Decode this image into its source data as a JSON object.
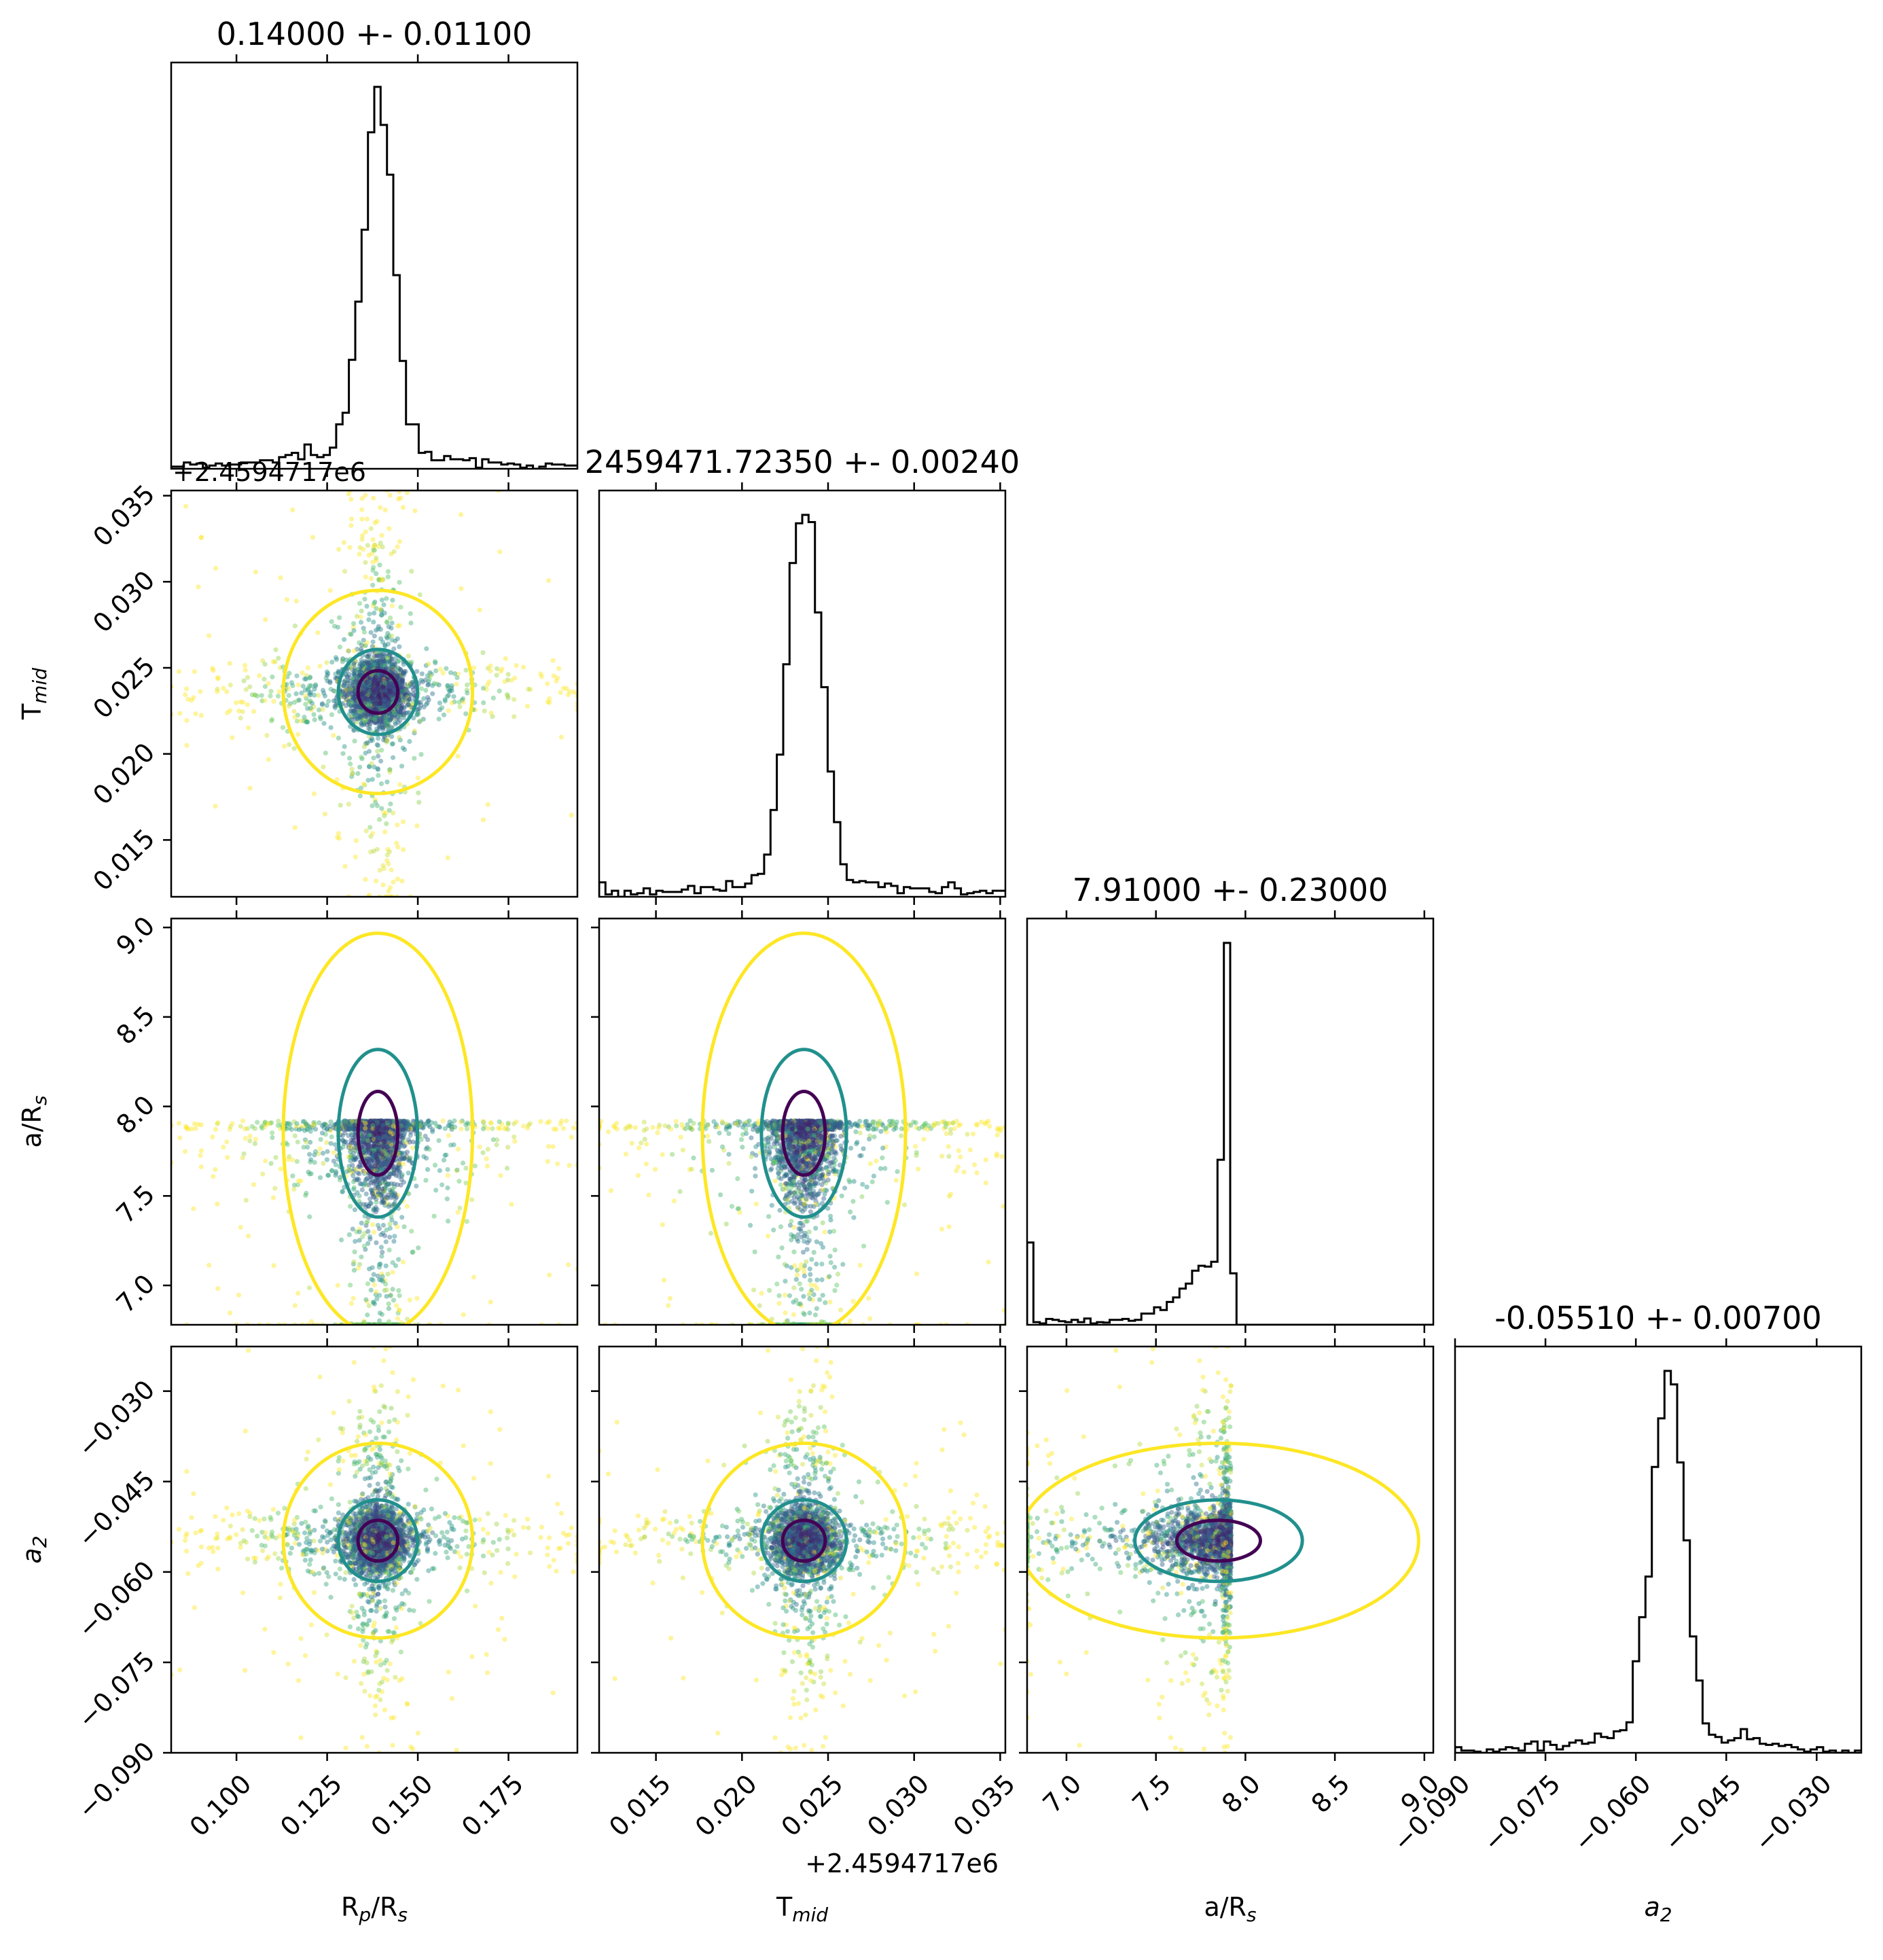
{
  "chart_data": {
    "type": "corner",
    "parameters": [
      {
        "name": "R_p/R_s",
        "label": {
          "base": "R",
          "sub": "p",
          "tail": "/R",
          "tail_sub": "s"
        },
        "title": "0.14000 +- 0.01100",
        "range": [
          0.082,
          0.194
        ],
        "ticks": [
          "0.100",
          "0.125",
          "0.150",
          "0.175"
        ],
        "tick_values": [
          0.1,
          0.125,
          0.15,
          0.175
        ],
        "offset": "",
        "hist": {
          "median": 0.139,
          "core_sigma": 0.0042,
          "tail_sigma": 0.022,
          "tail_weight": 0.2,
          "floor": 0.02
        }
      },
      {
        "name": "T_mid",
        "label": {
          "base": "T",
          "sub": "mid",
          "tail": "",
          "tail_sub": ""
        },
        "title": "2459471.72350 +- 0.00240",
        "range": [
          0.0117,
          0.0353
        ],
        "ticks": [
          "0.015",
          "0.020",
          "0.025",
          "0.030",
          "0.035"
        ],
        "tick_values": [
          0.015,
          0.02,
          0.025,
          0.03,
          0.035
        ],
        "offset": "+2.4594717e6",
        "hist": {
          "median": 0.0236,
          "core_sigma": 0.00095,
          "tail_sigma": 0.006,
          "tail_weight": 0.16,
          "floor": 0.04
        }
      },
      {
        "name": "a/R_s",
        "label": {
          "base": "a/R",
          "sub": "s",
          "tail": "",
          "tail_sub": ""
        },
        "title": "7.91000 +- 0.23000",
        "range": [
          6.78,
          9.05
        ],
        "ticks": [
          "7.0",
          "7.5",
          "8.0",
          "8.5",
          "9.0"
        ],
        "tick_values": [
          7.0,
          7.5,
          8.0,
          8.5,
          9.0
        ],
        "offset": "",
        "hist": {
          "median": 7.85,
          "core_sigma": 0.18,
          "tail_sigma": 1.2,
          "tail_weight": 0.35,
          "floor": 0.0,
          "max": 7.92
        }
      },
      {
        "name": "a_2",
        "label": {
          "base": "a",
          "sub": "2",
          "tail": "",
          "tail_sub": "",
          "italic": true
        },
        "title": "-0.05510 +- 0.00700",
        "range": [
          -0.09,
          -0.0226
        ],
        "ticks": [
          "−0.090",
          "−0.075",
          "−0.060",
          "−0.045",
          "−0.030"
        ],
        "tick_values": [
          -0.09,
          -0.075,
          -0.06,
          -0.045,
          -0.03
        ],
        "offset": "",
        "hist": {
          "median": -0.0548,
          "core_sigma": 0.0026,
          "tail_sigma": 0.013,
          "tail_weight": 0.18,
          "floor": 0.03
        }
      }
    ],
    "contour_colors": [
      "#440154",
      "#21908d",
      "#fde725"
    ],
    "scatter_colormap": "viridis"
  }
}
